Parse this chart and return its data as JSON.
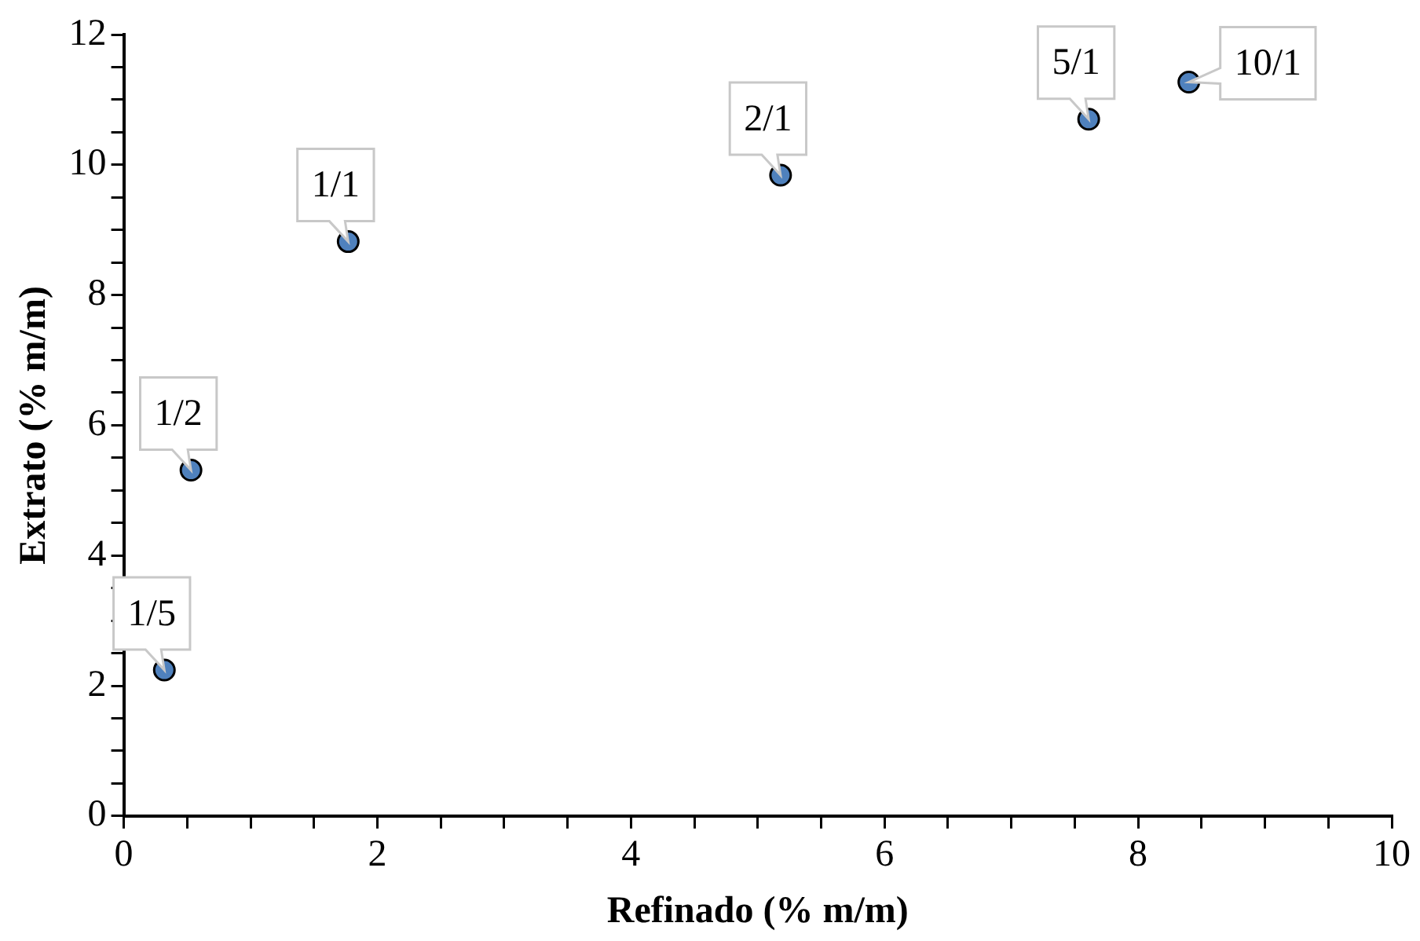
{
  "chart_data": {
    "type": "scatter",
    "xlabel": "Refinado (% m/m)",
    "ylabel": "Extrato (% m/m)",
    "series": [
      {
        "color": "#4f81bd",
        "x": [
          0.32,
          0.53,
          1.77,
          5.18,
          7.61,
          8.4
        ],
        "values": [
          2.24,
          5.31,
          8.82,
          9.84,
          10.7,
          11.27
        ]
      }
    ],
    "xlim": [
      0,
      10
    ],
    "ylim": [
      0,
      12
    ],
    "xticks": [
      0,
      {
        "value": 0.5,
        "label": null
      },
      2,
      {
        "value": 1,
        "label": null
      },
      {
        "value": 1.5,
        "label": null
      },
      {
        "value": 2.5,
        "label": null
      },
      {
        "value": 3,
        "label": null
      },
      {
        "value": 3.5,
        "label": null
      },
      4,
      {
        "value": 4.5,
        "label": null
      },
      {
        "value": 5,
        "label": null
      },
      {
        "value": 5.5,
        "label": null
      },
      6,
      {
        "value": 6.5,
        "label": null
      },
      {
        "value": 7,
        "label": null
      },
      {
        "value": 7.5,
        "label": null
      },
      8,
      {
        "value": 8.5,
        "label": null
      },
      {
        "value": 9,
        "label": null
      },
      {
        "value": 9.5,
        "label": null
      },
      10
    ],
    "yticks": [
      0,
      {
        "value": 0.5,
        "label": null
      },
      {
        "value": 1,
        "label": null
      },
      {
        "value": 1.5,
        "label": null
      },
      2,
      {
        "value": 2.5,
        "label": null
      },
      {
        "value": 3,
        "label": null
      },
      {
        "value": 3.5,
        "label": null
      },
      4,
      {
        "value": 4.5,
        "label": null
      },
      {
        "value": 5,
        "label": null
      },
      {
        "value": 5.5,
        "label": null
      },
      6,
      {
        "value": 6.5,
        "label": null
      },
      {
        "value": 7,
        "label": null
      },
      {
        "value": 7.5,
        "label": null
      },
      8,
      {
        "value": 8.5,
        "label": null
      },
      {
        "value": 9,
        "label": null
      },
      {
        "value": 9.5,
        "label": null
      },
      10,
      {
        "value": 10.5,
        "label": null
      },
      {
        "value": 11,
        "label": null
      },
      {
        "value": 11.5,
        "label": null
      },
      12
    ],
    "annotations": [
      {
        "text": "1/5",
        "x": 0.32,
        "y": 2.24
      },
      {
        "text": "1/2",
        "x": 0.53,
        "y": 5.31
      },
      {
        "text": "1/1",
        "x": 1.77,
        "y": 8.82
      },
      {
        "text": "2/1",
        "x": 5.18,
        "y": 9.84
      },
      {
        "text": "5/1",
        "x": 7.61,
        "y": 10.7
      },
      {
        "text": "10/1",
        "x": 8.4,
        "y": 11.27
      }
    ],
    "grid": false,
    "legend": false,
    "marker": "circle"
  }
}
